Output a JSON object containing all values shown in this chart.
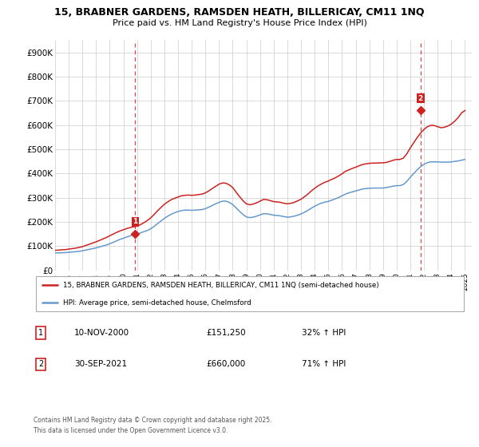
{
  "title_line1": "15, BRABNER GARDENS, RAMSDEN HEATH, BILLERICAY, CM11 1NQ",
  "title_line2": "Price paid vs. HM Land Registry's House Price Index (HPI)",
  "xlim_start": 1995.0,
  "xlim_end": 2025.5,
  "ylim_min": 0,
  "ylim_max": 950000,
  "yticks": [
    0,
    100000,
    200000,
    300000,
    400000,
    500000,
    600000,
    700000,
    800000,
    900000
  ],
  "ytick_labels": [
    "£0",
    "£100K",
    "£200K",
    "£300K",
    "£400K",
    "£500K",
    "£600K",
    "£700K",
    "£800K",
    "£900K"
  ],
  "xticks": [
    1995,
    1996,
    1997,
    1998,
    1999,
    2000,
    2001,
    2002,
    2003,
    2004,
    2005,
    2006,
    2007,
    2008,
    2009,
    2010,
    2011,
    2012,
    2013,
    2014,
    2015,
    2016,
    2017,
    2018,
    2019,
    2020,
    2021,
    2022,
    2023,
    2024,
    2025
  ],
  "hpi_color": "#6699cc",
  "price_color": "#cc2222",
  "marker_color": "#cc2222",
  "sale1_x": 2000.86,
  "sale1_y": 151250,
  "sale2_x": 2021.75,
  "sale2_y": 660000,
  "vline_color": "#dd4444",
  "legend_line1": "15, BRABNER GARDENS, RAMSDEN HEATH, BILLERICAY, CM11 1NQ (semi-detached house)",
  "legend_line2": "HPI: Average price, semi-detached house, Chelmsford",
  "annotation1_date": "10-NOV-2000",
  "annotation1_price": "£151,250",
  "annotation1_hpi": "32% ↑ HPI",
  "annotation2_date": "30-SEP-2021",
  "annotation2_price": "£660,000",
  "annotation2_hpi": "71% ↑ HPI",
  "footnote": "Contains HM Land Registry data © Crown copyright and database right 2025.\nThis data is licensed under the Open Government Licence v3.0.",
  "hpi_data_x": [
    1995.0,
    1995.25,
    1995.5,
    1995.75,
    1996.0,
    1996.25,
    1996.5,
    1996.75,
    1997.0,
    1997.25,
    1997.5,
    1997.75,
    1998.0,
    1998.25,
    1998.5,
    1998.75,
    1999.0,
    1999.25,
    1999.5,
    1999.75,
    2000.0,
    2000.25,
    2000.5,
    2000.75,
    2001.0,
    2001.25,
    2001.5,
    2001.75,
    2002.0,
    2002.25,
    2002.5,
    2002.75,
    2003.0,
    2003.25,
    2003.5,
    2003.75,
    2004.0,
    2004.25,
    2004.5,
    2004.75,
    2005.0,
    2005.25,
    2005.5,
    2005.75,
    2006.0,
    2006.25,
    2006.5,
    2006.75,
    2007.0,
    2007.25,
    2007.5,
    2007.75,
    2008.0,
    2008.25,
    2008.5,
    2008.75,
    2009.0,
    2009.25,
    2009.5,
    2009.75,
    2010.0,
    2010.25,
    2010.5,
    2010.75,
    2011.0,
    2011.25,
    2011.5,
    2011.75,
    2012.0,
    2012.25,
    2012.5,
    2012.75,
    2013.0,
    2013.25,
    2013.5,
    2013.75,
    2014.0,
    2014.25,
    2014.5,
    2014.75,
    2015.0,
    2015.25,
    2015.5,
    2015.75,
    2016.0,
    2016.25,
    2016.5,
    2016.75,
    2017.0,
    2017.25,
    2017.5,
    2017.75,
    2018.0,
    2018.25,
    2018.5,
    2018.75,
    2019.0,
    2019.25,
    2019.5,
    2019.75,
    2020.0,
    2020.25,
    2020.5,
    2020.75,
    2021.0,
    2021.25,
    2021.5,
    2021.75,
    2022.0,
    2022.25,
    2022.5,
    2022.75,
    2023.0,
    2023.25,
    2023.5,
    2023.75,
    2024.0,
    2024.25,
    2024.5,
    2024.75,
    2025.0
  ],
  "hpi_data_y": [
    72000,
    72500,
    73000,
    73500,
    75000,
    76000,
    77500,
    79000,
    81000,
    84000,
    87000,
    90000,
    93000,
    97000,
    101000,
    105000,
    110000,
    116000,
    122000,
    128000,
    133000,
    138000,
    143000,
    147000,
    150000,
    155000,
    160000,
    165000,
    172000,
    182000,
    193000,
    204000,
    215000,
    224000,
    232000,
    238000,
    243000,
    247000,
    249000,
    249000,
    248000,
    249000,
    250000,
    251000,
    255000,
    261000,
    268000,
    275000,
    281000,
    286000,
    286000,
    281000,
    272000,
    258000,
    244000,
    231000,
    221000,
    218000,
    220000,
    224000,
    229000,
    234000,
    234000,
    231000,
    228000,
    227000,
    225000,
    222000,
    220000,
    221000,
    224000,
    228000,
    233000,
    240000,
    248000,
    257000,
    265000,
    272000,
    278000,
    282000,
    285000,
    290000,
    295000,
    301000,
    308000,
    315000,
    320000,
    324000,
    328000,
    332000,
    336000,
    338000,
    339000,
    340000,
    340000,
    340000,
    340000,
    342000,
    345000,
    348000,
    350000,
    350000,
    355000,
    368000,
    385000,
    400000,
    415000,
    428000,
    438000,
    445000,
    448000,
    448000,
    448000,
    447000,
    447000,
    447000,
    448000,
    450000,
    452000,
    455000,
    458000
  ],
  "price_data_x": [
    1995.0,
    1995.25,
    1995.5,
    1995.75,
    1996.0,
    1996.25,
    1996.5,
    1996.75,
    1997.0,
    1997.25,
    1997.5,
    1997.75,
    1998.0,
    1998.25,
    1998.5,
    1998.75,
    1999.0,
    1999.25,
    1999.5,
    1999.75,
    2000.0,
    2000.25,
    2000.5,
    2000.75,
    2001.0,
    2001.25,
    2001.5,
    2001.75,
    2002.0,
    2002.25,
    2002.5,
    2002.75,
    2003.0,
    2003.25,
    2003.5,
    2003.75,
    2004.0,
    2004.25,
    2004.5,
    2004.75,
    2005.0,
    2005.25,
    2005.5,
    2005.75,
    2006.0,
    2006.25,
    2006.5,
    2006.75,
    2007.0,
    2007.25,
    2007.5,
    2007.75,
    2008.0,
    2008.25,
    2008.5,
    2008.75,
    2009.0,
    2009.25,
    2009.5,
    2009.75,
    2010.0,
    2010.25,
    2010.5,
    2010.75,
    2011.0,
    2011.25,
    2011.5,
    2011.75,
    2012.0,
    2012.25,
    2012.5,
    2012.75,
    2013.0,
    2013.25,
    2013.5,
    2013.75,
    2014.0,
    2014.25,
    2014.5,
    2014.75,
    2015.0,
    2015.25,
    2015.5,
    2015.75,
    2016.0,
    2016.25,
    2016.5,
    2016.75,
    2017.0,
    2017.25,
    2017.5,
    2017.75,
    2018.0,
    2018.25,
    2018.5,
    2018.75,
    2019.0,
    2019.25,
    2019.5,
    2019.75,
    2020.0,
    2020.25,
    2020.5,
    2020.75,
    2021.0,
    2021.25,
    2021.5,
    2021.75,
    2022.0,
    2022.25,
    2022.5,
    2022.75,
    2023.0,
    2023.25,
    2023.5,
    2023.75,
    2024.0,
    2024.25,
    2024.5,
    2024.75,
    2025.0
  ],
  "price_data_y": [
    83000,
    84000,
    85000,
    86000,
    88000,
    90000,
    92000,
    95000,
    98000,
    103000,
    108000,
    113000,
    118000,
    124000,
    130000,
    136000,
    143000,
    150000,
    157000,
    163000,
    168000,
    173000,
    177000,
    180000,
    183000,
    189000,
    197000,
    206000,
    217000,
    231000,
    246000,
    260000,
    273000,
    283000,
    292000,
    298000,
    303000,
    308000,
    310000,
    311000,
    310000,
    311000,
    313000,
    315000,
    320000,
    328000,
    338000,
    347000,
    356000,
    361000,
    360000,
    353000,
    342000,
    323000,
    305000,
    288000,
    275000,
    271000,
    274000,
    279000,
    286000,
    293000,
    292000,
    288000,
    284000,
    283000,
    281000,
    277000,
    275000,
    277000,
    281000,
    287000,
    294000,
    304000,
    315000,
    328000,
    339000,
    349000,
    357000,
    364000,
    369000,
    376000,
    382000,
    390000,
    399000,
    409000,
    415000,
    421000,
    426000,
    432000,
    437000,
    440000,
    442000,
    443000,
    443000,
    444000,
    444000,
    446000,
    450000,
    455000,
    458000,
    458000,
    464000,
    482000,
    506000,
    527000,
    548000,
    567000,
    582000,
    593000,
    599000,
    598000,
    593000,
    589000,
    591000,
    596000,
    604000,
    616000,
    631000,
    650000,
    660000
  ]
}
